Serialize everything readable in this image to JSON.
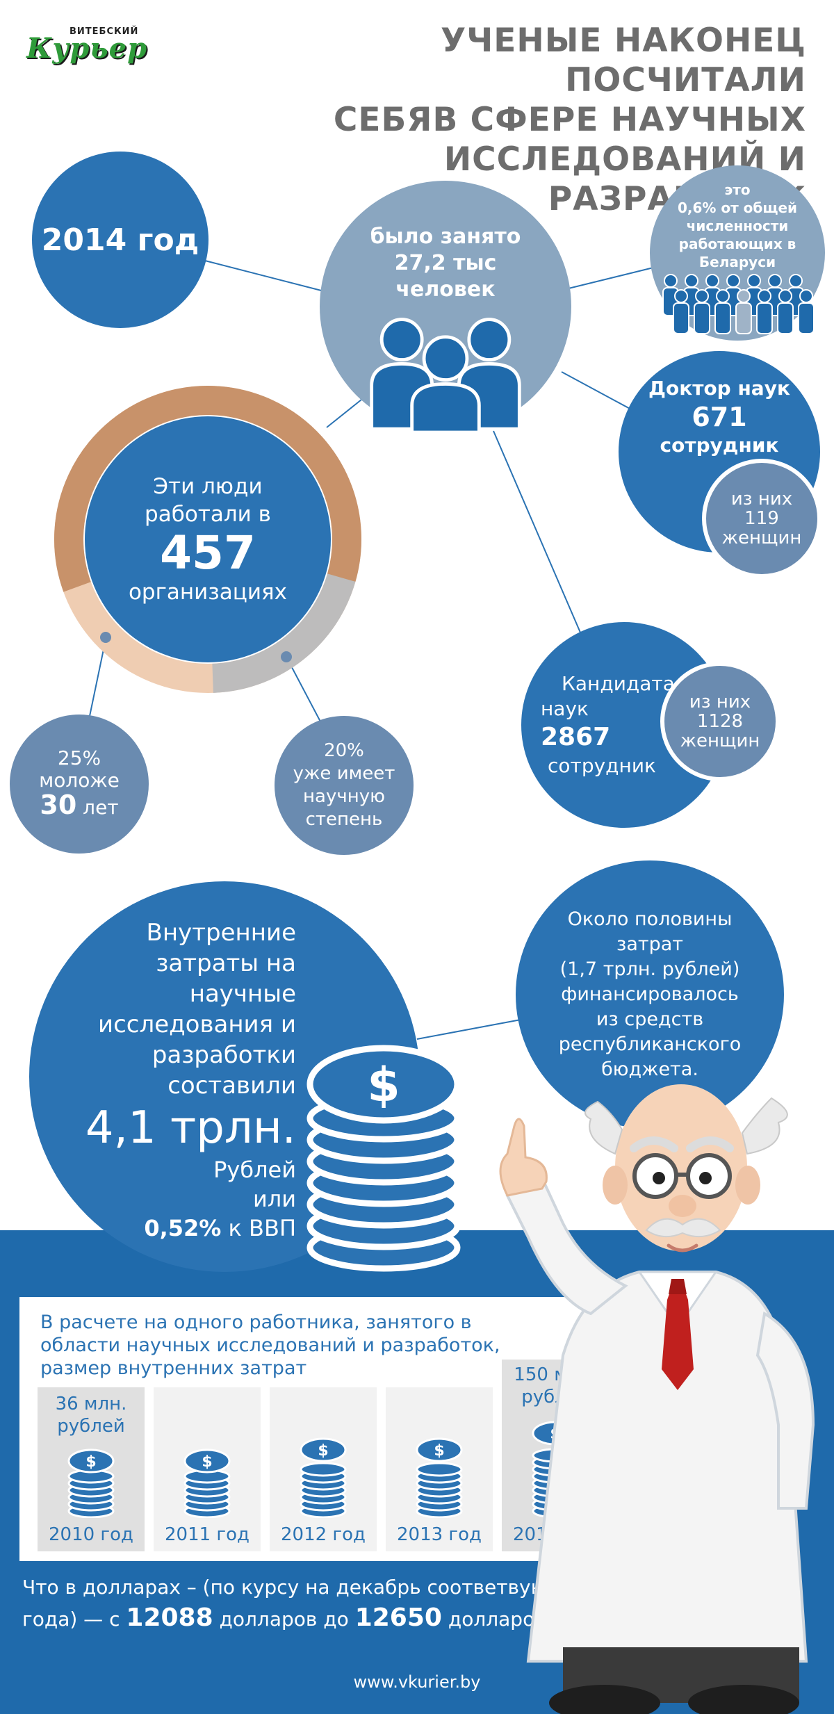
{
  "logo": {
    "small": "ВИТЕБСКИЙ",
    "big": "Курьер"
  },
  "title": [
    "УЧЕНЫЕ НАКОНЕЦ ПОСЧИТАЛИ",
    "СЕБЯВ СФЕРЕ НАУЧНЫХ",
    "ИССЛЕДОВАНИЙ И РАЗРАБОТОК"
  ],
  "year_bubble": "2014 год",
  "employed": {
    "line1": "было занято",
    "line2": "27,2 тыс",
    "line3": "человек",
    "icon": "people-group-icon"
  },
  "share": {
    "lines": [
      "это",
      "0,6% от общей",
      "численности",
      "работающих в",
      "Беларуси"
    ],
    "icon": "crowd-icon"
  },
  "doctors": {
    "label": "Доктор наук",
    "count": "671",
    "unit": "сотрудник",
    "women_lines": [
      "из них",
      "119",
      "женщин"
    ]
  },
  "candidates": {
    "label1": "Кандидата",
    "label2": "наук",
    "count": "2867",
    "unit": "сотрудник",
    "women_lines": [
      "из них",
      "1128",
      "женщин"
    ]
  },
  "orgs": {
    "line1": "Эти люди",
    "line2": "работали в",
    "count": "457",
    "line3": "организациях",
    "ring_segments": [
      {
        "color": "#c8926a",
        "value": 0.6
      },
      {
        "color": "#bdbcbc",
        "value": 0.2
      },
      {
        "color": "#efcdb2",
        "value": 0.2
      }
    ]
  },
  "young": {
    "pct": "25%",
    "line": "моложе",
    "num": "30",
    "unit": "лет"
  },
  "degree": {
    "pct": "20%",
    "lines": [
      "уже имеет",
      "научную",
      "степень"
    ]
  },
  "costs": {
    "lines": [
      "Внутренние",
      "затраты на",
      "научные",
      "исследования и",
      "разработки",
      "составили"
    ],
    "amount": "4,1 трлн.",
    "unit": "Рублей",
    "or": "или",
    "gdp_pct": "0,52%",
    "gdp_label": "к ВВП",
    "icon": "coin-stack-icon"
  },
  "budget": {
    "lines": [
      "Около половины",
      "затрат",
      "(1,7 трлн. рублей)",
      "финансировалось",
      "из средств",
      "республиканского",
      "бюджета."
    ]
  },
  "per_worker": {
    "heading": [
      "В расчете на одного работника, занятого в",
      "области научных исследований и разработок,",
      "размер внутренних затрат"
    ],
    "years": [
      {
        "year": "2010 год",
        "value": "36 млн. рублей",
        "v1": "36 млн.",
        "v2": "рублей"
      },
      {
        "year": "2011 год"
      },
      {
        "year": "2012 год"
      },
      {
        "year": "2013 год"
      },
      {
        "year": "2014 год",
        "value": "150 млн. рублей",
        "v1": "150 млн.",
        "v2": "рублей"
      }
    ]
  },
  "dollars": {
    "prefix": "Что в долларах – (по курсу на декабрь соответвующего",
    "line2a": "года) — с",
    "from": "12088",
    "mid": "долларов до",
    "to": "12650",
    "end": "долларов"
  },
  "footer": "www.vkurier.by",
  "colors": {
    "blue": "#2b73b3",
    "grey_blue": "#8aa6c0",
    "tan": "#c8926a",
    "title_grey": "#6d6d6d"
  }
}
